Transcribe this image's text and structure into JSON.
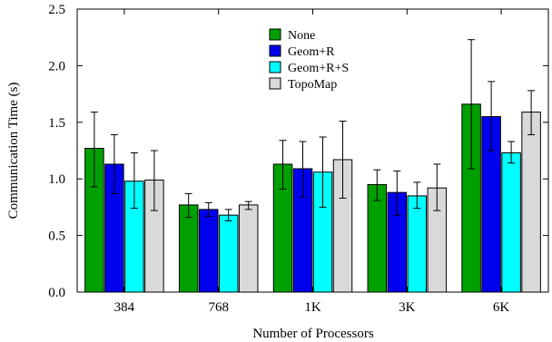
{
  "chart_data": {
    "type": "bar",
    "title": "",
    "xlabel": "Number of Processors",
    "ylabel": "Communication Time (s)",
    "categories": [
      "384",
      "768",
      "1K",
      "3K",
      "6K"
    ],
    "ylim": [
      0,
      2.5
    ],
    "yticks": [
      0,
      0.5,
      1,
      1.5,
      2,
      2.5
    ],
    "ytick_labels": [
      "0.0",
      "0.5",
      "1.0",
      "1.5",
      "2.0",
      "2.5"
    ],
    "grid": false,
    "legend_position": "top-center",
    "series": [
      {
        "name": "None",
        "color": "#00a000",
        "values": [
          1.27,
          0.77,
          1.13,
          0.95,
          1.66
        ],
        "err_low": [
          0.93,
          0.66,
          0.91,
          0.81,
          1.09
        ],
        "err_high": [
          1.59,
          0.87,
          1.34,
          1.08,
          2.23
        ]
      },
      {
        "name": "Geom+R",
        "color": "#0000ee",
        "values": [
          1.13,
          0.73,
          1.09,
          0.88,
          1.55
        ],
        "err_low": [
          0.87,
          0.67,
          0.84,
          0.68,
          1.25
        ],
        "err_high": [
          1.39,
          0.79,
          1.33,
          1.07,
          1.86
        ]
      },
      {
        "name": "Geom+R+S",
        "color": "#00ffff",
        "values": [
          0.98,
          0.68,
          1.06,
          0.85,
          1.23
        ],
        "err_low": [
          0.74,
          0.63,
          0.75,
          0.74,
          1.14
        ],
        "err_high": [
          1.23,
          0.73,
          1.37,
          0.97,
          1.33
        ]
      },
      {
        "name": "TopoMap",
        "color": "#d9d9d9",
        "values": [
          0.99,
          0.77,
          1.17,
          0.92,
          1.59
        ],
        "err_low": [
          0.72,
          0.73,
          0.83,
          0.72,
          1.39
        ],
        "err_high": [
          1.25,
          0.8,
          1.51,
          1.13,
          1.78
        ]
      }
    ]
  }
}
